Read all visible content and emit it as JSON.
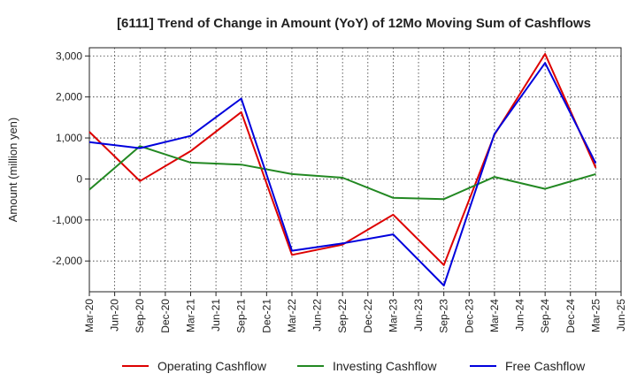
{
  "chart_data": {
    "type": "line",
    "title": "[6111]  Trend of Change in Amount (YoY) of 12Mo Moving Sum of Cashflows",
    "ylabel": "Amount (million yen)",
    "xlabel": "",
    "ylim": [
      -2750,
      3200
    ],
    "yticks": [
      3000,
      2000,
      1000,
      0,
      -1000,
      -2000
    ],
    "ytick_labels": [
      "3,000",
      "2,000",
      "1,000",
      "0",
      "-1,000",
      "-2,000"
    ],
    "categories": [
      "Mar-20",
      "Jun-20",
      "Sep-20",
      "Dec-20",
      "Mar-21",
      "Jun-21",
      "Sep-21",
      "Dec-21",
      "Mar-22",
      "Jun-22",
      "Sep-22",
      "Dec-22",
      "Mar-23",
      "Jun-23",
      "Sep-23",
      "Dec-23",
      "Mar-24",
      "Jun-24",
      "Sep-24",
      "Dec-24",
      "Mar-25",
      "Jun-25"
    ],
    "grid": true,
    "legend_position": "bottom",
    "series": [
      {
        "name": "Operating Cashflow",
        "color": "#dd0000",
        "points": [
          {
            "x": "Mar-20",
            "y": 1150
          },
          {
            "x": "Sep-20",
            "y": -50
          },
          {
            "x": "Mar-21",
            "y": 680
          },
          {
            "x": "Sep-21",
            "y": 1630
          },
          {
            "x": "Mar-22",
            "y": -1850
          },
          {
            "x": "Sep-22",
            "y": -1600
          },
          {
            "x": "Mar-23",
            "y": -870
          },
          {
            "x": "Sep-23",
            "y": -2100
          },
          {
            "x": "Mar-24",
            "y": 1080
          },
          {
            "x": "Sep-24",
            "y": 3050
          },
          {
            "x": "Mar-25",
            "y": 270
          }
        ]
      },
      {
        "name": "Investing Cashflow",
        "color": "#228822",
        "points": [
          {
            "x": "Mar-20",
            "y": -260
          },
          {
            "x": "Sep-20",
            "y": 800
          },
          {
            "x": "Mar-21",
            "y": 400
          },
          {
            "x": "Sep-21",
            "y": 350
          },
          {
            "x": "Mar-22",
            "y": 120
          },
          {
            "x": "Sep-22",
            "y": 30
          },
          {
            "x": "Mar-23",
            "y": -460
          },
          {
            "x": "Sep-23",
            "y": -490
          },
          {
            "x": "Mar-24",
            "y": 50
          },
          {
            "x": "Sep-24",
            "y": -240
          },
          {
            "x": "Mar-25",
            "y": 120
          }
        ]
      },
      {
        "name": "Free Cashflow",
        "color": "#0000dd",
        "points": [
          {
            "x": "Mar-20",
            "y": 900
          },
          {
            "x": "Sep-20",
            "y": 750
          },
          {
            "x": "Mar-21",
            "y": 1050
          },
          {
            "x": "Sep-21",
            "y": 1960
          },
          {
            "x": "Mar-22",
            "y": -1750
          },
          {
            "x": "Sep-22",
            "y": -1570
          },
          {
            "x": "Mar-23",
            "y": -1350
          },
          {
            "x": "Sep-23",
            "y": -2600
          },
          {
            "x": "Mar-24",
            "y": 1100
          },
          {
            "x": "Sep-24",
            "y": 2830
          },
          {
            "x": "Mar-25",
            "y": 380
          }
        ]
      }
    ]
  }
}
